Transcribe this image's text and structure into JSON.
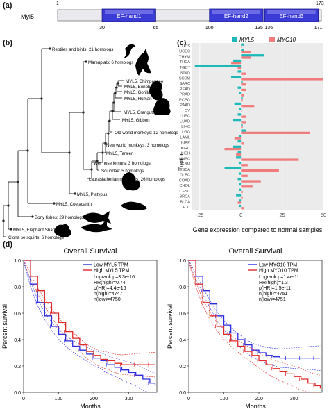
{
  "panel_labels": [
    "(a)",
    "(b)",
    "(c)",
    "(d)"
  ],
  "panel_a": {
    "gene": "Myl5",
    "start": "1",
    "end": "173",
    "domains": [
      {
        "label": "EF-hand1",
        "start": 30,
        "end": 65
      },
      {
        "label": "EF-hand2",
        "start": 100,
        "end": 135
      },
      {
        "label": "EF-hand3",
        "start": 136,
        "end": 171
      }
    ],
    "tick_labels": [
      "30",
      "65",
      "100",
      "135",
      "136",
      "171"
    ]
  },
  "panel_b": {
    "leaves": [
      "Reptiles and birds: 21 homologs",
      "Marsupials: 6 homologs",
      "MYL5, Chimpanzee",
      "MYL5, Bonobo",
      "MYL5, Gorilla",
      "MYL5, Human",
      "MYL5, Orangutan",
      "MYL5, Gibbon",
      "Old world monkeys: 12 homologs",
      "New world monkeys: 3 homologs",
      "MYL5, Tarsier",
      "Wet nose lemurs: 3 homologs",
      "Sciuridae: 5 homologs",
      "Laurasiatherian mammals: 26 homologs",
      "MYL5, Platypus",
      "MYL5, Coelacanth",
      "Bony fishes: 29 homologs",
      "MYL5, Elephant Shark",
      "Ciona se squirts: 6 homologs"
    ],
    "silhouette_icons": [
      "bird-icon",
      "kangaroo-icon",
      "monkey-icon",
      "gorilla-icon",
      "squirrel-icon",
      "platypus-icon",
      "fish-icon",
      "shark-icon",
      "squirt-icon"
    ]
  },
  "panel_c": {
    "chart_data": {
      "type": "bar",
      "orientation": "horizontal",
      "ylabel": "Tumor",
      "xlabel": "Gene expression compared to normal samples",
      "xlim": [
        -30,
        50
      ],
      "xticks": [
        "-25",
        "0",
        "25",
        "50"
      ],
      "legend_position": "top",
      "categories": [
        "UCS",
        "UCEC",
        "THYM",
        "THCA",
        "TGCT",
        "STAD",
        "SKCM",
        "SARC",
        "READ",
        "PRAD",
        "PCPG",
        "PAAD",
        "OV",
        "LUSC",
        "LUAD",
        "LIHC",
        "LGG",
        "LAML",
        "KIRP",
        "KIRC",
        "KICH",
        "HNSC",
        "GBM",
        "ESCA",
        "DLBC",
        "COAD",
        "CHOL",
        "CESC",
        "BRCA",
        "BLCA",
        "ACC"
      ],
      "series": [
        {
          "name": "MYL5",
          "color": "#1db8b8",
          "values": [
            2,
            2,
            14,
            -5,
            -28,
            -2,
            -6,
            1,
            -2,
            -1,
            1,
            -4,
            -1,
            -2,
            -5,
            1,
            3,
            -1,
            -2,
            -5,
            -2,
            -3,
            -1,
            -10,
            -1,
            -2,
            -1,
            -1,
            -3,
            -1,
            -1
          ]
        },
        {
          "name": "MYO10",
          "color": "#ef7b7b",
          "values": [
            0,
            6,
            6,
            -6,
            -2,
            3,
            50,
            3,
            3,
            2,
            1,
            8,
            0,
            3,
            3,
            1,
            42,
            -4,
            2,
            -10,
            -3,
            35,
            4,
            23,
            4,
            12,
            7,
            1,
            1,
            -2,
            2
          ]
        }
      ]
    }
  },
  "panel_d": {
    "chart_data": [
      {
        "type": "line",
        "title": "Overall Survival",
        "xlabel": "Months",
        "ylabel": "Percent survival",
        "xlim": [
          0,
          380
        ],
        "ylim": [
          0,
          1.0
        ],
        "xticks": [
          "0",
          "100",
          "200",
          "300"
        ],
        "yticks": [
          "0.0",
          "0.2",
          "0.4",
          "0.6",
          "0.8",
          "1.0"
        ],
        "legend": [
          "Low MYL5 TPM",
          "High MYL5 TPM"
        ],
        "stats": [
          "Logrank p=3.3e-16",
          "HR(high)=0.74",
          "p(HR)=4.4e-16",
          "n(high)=4747",
          "n(low)=4750"
        ],
        "series": [
          {
            "name": "Low MYL5 TPM",
            "color": "#2a2ae0",
            "x": [
              0,
              20,
              40,
              60,
              80,
              100,
              120,
              140,
              160,
              180,
              200,
              220,
              240,
              260,
              280,
              300,
              320,
              340,
              360,
              375
            ],
            "y": [
              1.0,
              0.82,
              0.68,
              0.58,
              0.5,
              0.44,
              0.39,
              0.35,
              0.32,
              0.29,
              0.26,
              0.24,
              0.21,
              0.19,
              0.17,
              0.15,
              0.13,
              0.1,
              0.07,
              0.05
            ]
          },
          {
            "name": "High MYL5 TPM",
            "color": "#e02a2a",
            "x": [
              0,
              20,
              40,
              60,
              80,
              100,
              120,
              140,
              160,
              180,
              200,
              220,
              240,
              260,
              280,
              300,
              320,
              340,
              360,
              375
            ],
            "y": [
              1.0,
              0.88,
              0.77,
              0.68,
              0.6,
              0.53,
              0.46,
              0.41,
              0.36,
              0.31,
              0.28,
              0.25,
              0.24,
              0.22,
              0.21,
              0.21,
              0.21,
              0.21,
              0.21,
              0.21
            ]
          }
        ]
      },
      {
        "type": "line",
        "title": "Overall Survival",
        "xlabel": "Months",
        "ylabel": "Percent survival",
        "xlim": [
          0,
          380
        ],
        "ylim": [
          0,
          1.0
        ],
        "xticks": [
          "0",
          "100",
          "200",
          "300"
        ],
        "yticks": [
          "0.0",
          "0.2",
          "0.4",
          "0.6",
          "0.8",
          "1.0"
        ],
        "legend": [
          "Low MYO10 TPM",
          "High MYO10 TPM"
        ],
        "stats": [
          "Logrank p=1.4e-11",
          "HR(high)=1.3",
          "p(HR)=1.5e-11",
          "n(high)=4751",
          "n(low)=4751"
        ],
        "series": [
          {
            "name": "Low MYO10 TPM",
            "color": "#2a2ae0",
            "x": [
              0,
              20,
              40,
              60,
              80,
              100,
              120,
              140,
              160,
              180,
              200,
              220,
              240,
              260,
              280,
              300,
              320,
              340,
              360,
              375
            ],
            "y": [
              1.0,
              0.88,
              0.77,
              0.67,
              0.58,
              0.51,
              0.45,
              0.4,
              0.36,
              0.32,
              0.3,
              0.28,
              0.27,
              0.26,
              0.26,
              0.26,
              0.26,
              0.26,
              0.26,
              0.26
            ]
          },
          {
            "name": "High MYO10 TPM",
            "color": "#e02a2a",
            "x": [
              0,
              20,
              40,
              60,
              80,
              100,
              120,
              140,
              160,
              180,
              200,
              220,
              240,
              260,
              280,
              300,
              320,
              340,
              360,
              375
            ],
            "y": [
              1.0,
              0.82,
              0.68,
              0.58,
              0.5,
              0.44,
              0.39,
              0.35,
              0.31,
              0.28,
              0.24,
              0.21,
              0.18,
              0.16,
              0.14,
              0.12,
              0.1,
              0.07,
              0.05,
              0.03
            ]
          }
        ]
      }
    ]
  }
}
